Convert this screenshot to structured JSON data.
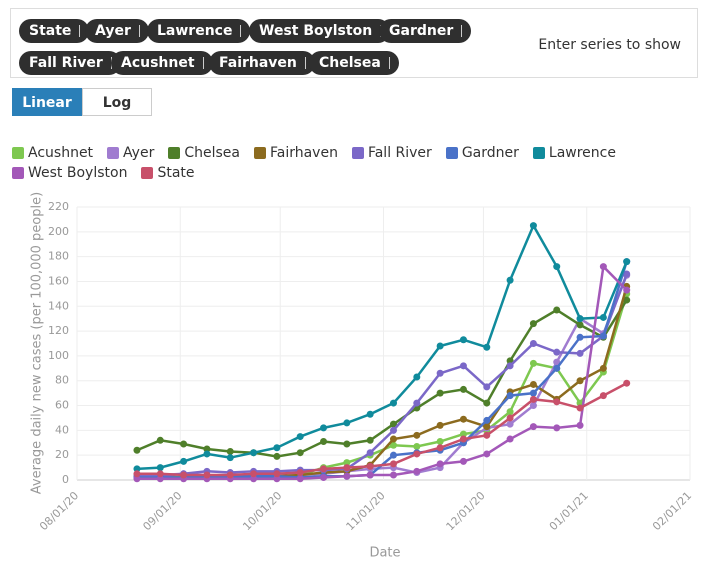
{
  "series_chips": [
    "State",
    "Ayer",
    "Lawrence",
    "West Boylston",
    "Gardner",
    "Fall River",
    "Acushnet",
    "Fairhaven",
    "Chelsea"
  ],
  "search_placeholder": "Enter series to show",
  "scale_options": [
    "Linear",
    "Log"
  ],
  "chart_data": {
    "type": "line",
    "xlabel": "Date",
    "ylabel": "Average daily new cases (per 100,000 people)",
    "x": [
      "08/19/20",
      "08/26/20",
      "09/02/20",
      "09/09/20",
      "09/16/20",
      "09/23/20",
      "09/30/20",
      "10/07/20",
      "10/14/20",
      "10/21/20",
      "10/28/20",
      "11/04/20",
      "11/11/20",
      "11/18/20",
      "11/25/20",
      "12/02/20",
      "12/09/20",
      "12/16/20",
      "12/23/20",
      "12/30/20",
      "01/06/21",
      "01/13/21"
    ],
    "xlim": [
      "08/01/20",
      "02/01/21"
    ],
    "xticks": [
      "08/01/20",
      "09/01/20",
      "10/01/20",
      "11/01/20",
      "12/01/20",
      "01/01/21",
      "02/01/21"
    ],
    "ylim": [
      0,
      220
    ],
    "yticks": [
      0,
      20,
      40,
      60,
      80,
      100,
      120,
      140,
      160,
      180,
      200,
      220
    ],
    "grid": true,
    "log_scale": false,
    "series": [
      {
        "name": "Acushnet",
        "color": "#7ec850",
        "values": [
          3,
          3,
          2,
          2,
          2,
          3,
          3,
          4,
          10,
          14,
          20,
          28,
          27,
          31,
          37,
          40,
          55,
          94,
          90,
          62,
          87,
          150
        ]
      },
      {
        "name": "Ayer",
        "color": "#a07cd0",
        "values": [
          4,
          4,
          5,
          4,
          3,
          3,
          3,
          4,
          5,
          7,
          9,
          10,
          6,
          10,
          30,
          42,
          45,
          60,
          95,
          130,
          118,
          165
        ]
      },
      {
        "name": "Chelsea",
        "color": "#4f7f2a",
        "values": [
          24,
          32,
          29,
          25,
          23,
          22,
          19,
          22,
          31,
          29,
          32,
          45,
          58,
          70,
          73,
          62,
          96,
          126,
          137,
          125,
          115,
          145
        ]
      },
      {
        "name": "Fairhaven",
        "color": "#8c6b1f",
        "values": [
          2,
          2,
          2,
          2,
          2,
          3,
          3,
          4,
          6,
          7,
          12,
          33,
          36,
          44,
          49,
          43,
          71,
          77,
          65,
          80,
          90,
          156
        ]
      },
      {
        "name": "Fall River",
        "color": "#7b68c8",
        "values": [
          3,
          3,
          5,
          7,
          6,
          7,
          7,
          8,
          8,
          9,
          22,
          40,
          62,
          86,
          92,
          75,
          92,
          110,
          103,
          102,
          116,
          166
        ]
      },
      {
        "name": "Gardner",
        "color": "#4a72c8",
        "values": [
          2,
          2,
          2,
          3,
          3,
          3,
          3,
          2,
          3,
          3,
          4,
          20,
          22,
          24,
          30,
          48,
          68,
          70,
          90,
          115,
          116,
          176
        ]
      },
      {
        "name": "Lawrence",
        "color": "#108b9c",
        "values": [
          9,
          10,
          15,
          21,
          18,
          22,
          26,
          35,
          42,
          46,
          53,
          62,
          83,
          108,
          113,
          107,
          161,
          205,
          172,
          130,
          131,
          176
        ]
      },
      {
        "name": "West Boylston",
        "color": "#a358b8",
        "values": [
          1,
          1,
          1,
          1,
          1,
          1,
          1,
          1,
          2,
          3,
          4,
          4,
          7,
          13,
          15,
          21,
          33,
          43,
          42,
          44,
          172,
          153
        ]
      },
      {
        "name": "State",
        "color": "#c8506a",
        "values": [
          5,
          5,
          4,
          4,
          4,
          5,
          5,
          6,
          9,
          10,
          11,
          13,
          21,
          26,
          33,
          36,
          50,
          65,
          63,
          58,
          68,
          78
        ]
      }
    ]
  }
}
